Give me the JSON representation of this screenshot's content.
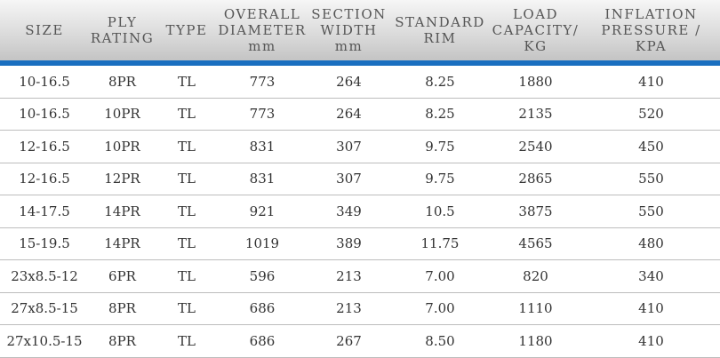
{
  "header": {
    "columns": [
      {
        "lines": [
          "SIZE"
        ]
      },
      {
        "lines": [
          "PLY",
          "RATING"
        ]
      },
      {
        "lines": [
          "TYPE"
        ]
      },
      {
        "lines": [
          "OVERALL",
          "DIAMETER",
          "mm"
        ]
      },
      {
        "lines": [
          "SECTION",
          "WIDTH",
          "mm"
        ]
      },
      {
        "lines": [
          "STANDARD",
          "RIM"
        ]
      },
      {
        "lines": [
          "LOAD",
          "CAPACITY/",
          "KG"
        ]
      },
      {
        "lines": [
          "INFLATION",
          "PRESSURE /",
          "KPA"
        ]
      }
    ]
  },
  "colors": {
    "accent_line": "#1a6fc0",
    "row_border": "#bdbdbd"
  },
  "rows": [
    [
      "10-16.5",
      "8PR",
      "TL",
      "773",
      "264",
      "8.25",
      "1880",
      "410"
    ],
    [
      "10-16.5",
      "10PR",
      "TL",
      "773",
      "264",
      "8.25",
      "2135",
      "520"
    ],
    [
      "12-16.5",
      "10PR",
      "TL",
      "831",
      "307",
      "9.75",
      "2540",
      "450"
    ],
    [
      "12-16.5",
      "12PR",
      "TL",
      "831",
      "307",
      "9.75",
      "2865",
      "550"
    ],
    [
      "14-17.5",
      "14PR",
      "TL",
      "921",
      "349",
      "10.5",
      "3875",
      "550"
    ],
    [
      "15-19.5",
      "14PR",
      "TL",
      "1019",
      "389",
      "11.75",
      "4565",
      "480"
    ],
    [
      "23x8.5-12",
      "6PR",
      "TL",
      "596",
      "213",
      "7.00",
      "820",
      "340"
    ],
    [
      "27x8.5-15",
      "8PR",
      "TL",
      "686",
      "213",
      "7.00",
      "1110",
      "410"
    ],
    [
      "27x10.5-15",
      "8PR",
      "TL",
      "686",
      "267",
      "8.50",
      "1180",
      "410"
    ]
  ]
}
